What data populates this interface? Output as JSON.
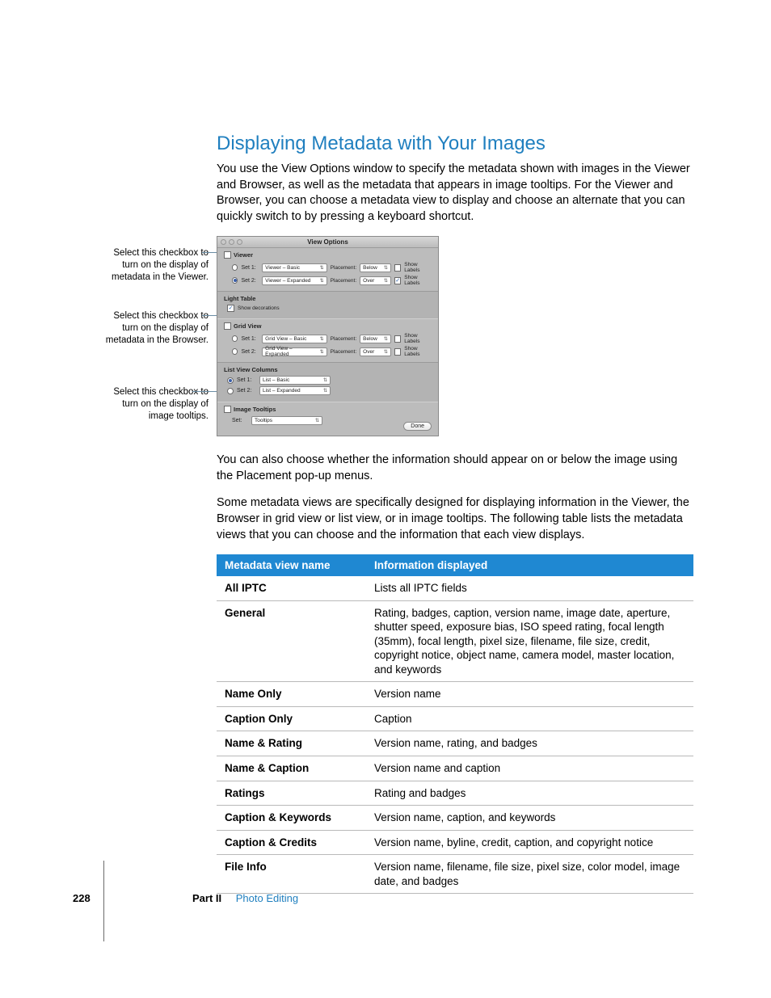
{
  "heading": "Displaying Metadata with Your Images",
  "intro": "You use the View Options window to specify the metadata shown with images in the Viewer and Browser, as well as the metadata that appears in image tooltips. For the Viewer and Browser, you can choose a metadata view to display and choose an alternate that you can quickly switch to by pressing a keyboard shortcut.",
  "callouts": {
    "c1": "Select this checkbox to turn on the display of metadata in the Viewer.",
    "c2": "Select this checkbox to turn on the display of metadata in the Browser.",
    "c3": "Select this checkbox to turn on the display of image tooltips."
  },
  "window": {
    "title": "View Options",
    "viewer": {
      "label": "Viewer",
      "set1_label": "Set 1:",
      "set1_value": "Viewer – Basic",
      "set2_label": "Set 2:",
      "set2_value": "Viewer – Expanded",
      "placement_label": "Placement:",
      "placement1": "Below",
      "placement2": "Over",
      "showlabels": "Show Labels"
    },
    "lighttable": {
      "label": "Light Table",
      "opt": "Show decorations"
    },
    "gridview": {
      "label": "Grid View",
      "set1_label": "Set 1:",
      "set1_value": "Grid View – Basic",
      "set2_label": "Set 2:",
      "set2_value": "Grid View – Expanded",
      "placement_label": "Placement:",
      "placement1": "Below",
      "placement2": "Over",
      "showlabels": "Show Labels"
    },
    "listview": {
      "label": "List View Columns",
      "set1_label": "Set 1:",
      "set1_value": "List – Basic",
      "set2_label": "Set 2:",
      "set2_value": "List – Expanded"
    },
    "tooltips": {
      "label": "Image Tooltips",
      "set_label": "Set:",
      "set_value": "Tooltips"
    },
    "done": "Done"
  },
  "para2": "You can also choose whether the information should appear on or below the image using the Placement pop-up menus.",
  "para3": "Some metadata views are specifically designed for displaying information in the Viewer, the Browser in grid view or list view, or in image tooltips. The following table lists the metadata views that you can choose and the information that each view displays.",
  "table": {
    "headers": {
      "h1": "Metadata view name",
      "h2": "Information displayed"
    },
    "rows": [
      {
        "name": "All IPTC",
        "info": "Lists all IPTC fields"
      },
      {
        "name": "General",
        "info": "Rating, badges, caption, version name, image date, aperture, shutter speed, exposure bias, ISO speed rating, focal length (35mm), focal length, pixel size, filename, file size, credit, copyright notice, object name, camera model, master location, and keywords"
      },
      {
        "name": "Name Only",
        "info": "Version name"
      },
      {
        "name": "Caption Only",
        "info": "Caption"
      },
      {
        "name": "Name & Rating",
        "info": "Version name, rating, and badges"
      },
      {
        "name": "Name & Caption",
        "info": "Version name and caption"
      },
      {
        "name": "Ratings",
        "info": "Rating and badges"
      },
      {
        "name": "Caption & Keywords",
        "info": "Version name, caption, and keywords"
      },
      {
        "name": "Caption & Credits",
        "info": "Version name, byline, credit, caption, and copyright notice"
      },
      {
        "name": "File Info",
        "info": "Version name, filename, file size, pixel size, color model, image date, and badges"
      }
    ]
  },
  "footer": {
    "page": "228",
    "part": "Part II",
    "chapter": "Photo Editing"
  },
  "colors": {
    "heading": "#1f7fbf",
    "table_header_bg": "#1f88d2",
    "table_header_fg": "#ffffff"
  }
}
